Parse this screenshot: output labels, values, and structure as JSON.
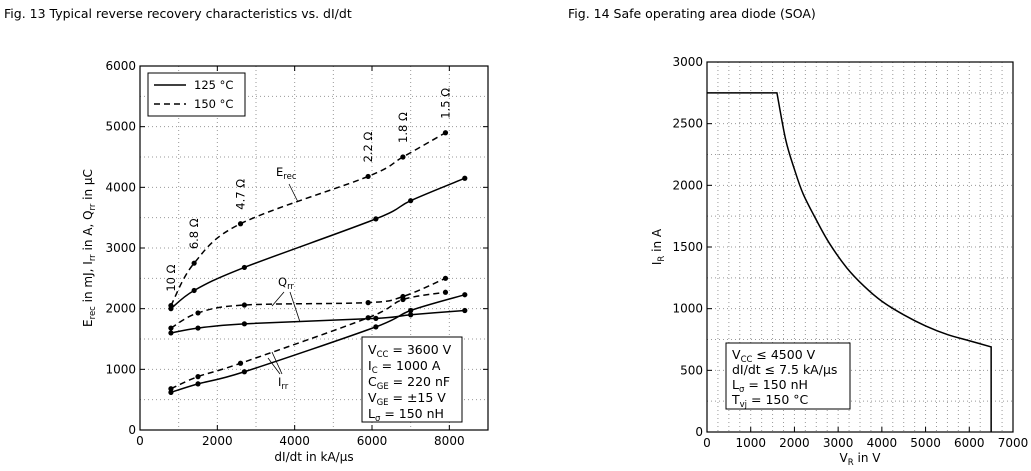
{
  "figures": {
    "fig13_title": "Fig. 13  Typical reverse recovery characteristics vs. dI/dt",
    "fig14_title": "Fig. 14  Safe operating area diode (SOA)"
  },
  "chart_data": [
    {
      "type": "line",
      "title": "Fig. 13  Typical reverse recovery characteristics vs. dI/dt",
      "xlabel": "dI/dt in kA/μs",
      "ylabel": "Erec in mJ, Irr in A, Qrr in μC",
      "xlim": [
        0,
        9000
      ],
      "ylim": [
        0,
        6000
      ],
      "xticks": [
        0,
        2000,
        4000,
        6000,
        8000
      ],
      "yticks": [
        0,
        1000,
        2000,
        3000,
        4000,
        5000,
        6000
      ],
      "grid": true,
      "legend": {
        "position": "top-left",
        "entries": [
          "125 °C",
          "150 °C"
        ]
      },
      "series": [
        {
          "name": "Erec 125 °C",
          "style": "solid",
          "x": [
            800,
            1400,
            2700,
            6100,
            7000,
            8400
          ],
          "y": [
            2000,
            2300,
            2680,
            3480,
            3780,
            4150
          ]
        },
        {
          "name": "Erec 150 °C",
          "style": "dashed",
          "x": [
            800,
            1400,
            2600,
            5900,
            6800,
            7900
          ],
          "y": [
            2050,
            2750,
            3400,
            4180,
            4500,
            4900
          ]
        },
        {
          "name": "Qrr 125 °C",
          "style": "solid",
          "x": [
            800,
            1500,
            2700,
            6100,
            7000,
            8400
          ],
          "y": [
            1600,
            1680,
            1750,
            1840,
            1900,
            1970
          ]
        },
        {
          "name": "Qrr 150 °C",
          "style": "dashed",
          "x": [
            800,
            1500,
            2700,
            5900,
            6800,
            7900
          ],
          "y": [
            1680,
            1930,
            2060,
            2100,
            2200,
            2500
          ]
        },
        {
          "name": "Irr 125 °C",
          "style": "solid",
          "x": [
            800,
            1500,
            2700,
            6100,
            7000,
            8400
          ],
          "y": [
            620,
            760,
            960,
            1700,
            1970,
            2230
          ]
        },
        {
          "name": "Irr 150 °C",
          "style": "dashed",
          "x": [
            800,
            1500,
            2600,
            5900,
            6800,
            7900
          ],
          "y": [
            680,
            880,
            1100,
            1850,
            2150,
            2270
          ]
        }
      ],
      "curve_labels": {
        "erec": "E",
        "erec_sub": "rec",
        "qrr": "Q",
        "qrr_sub": "rr",
        "irr": "I",
        "irr_sub": "rr"
      },
      "resistance_labels": [
        {
          "text": "10 Ω",
          "x": 800,
          "y": 2050
        },
        {
          "text": "6.8 Ω",
          "x": 1400,
          "y": 2750
        },
        {
          "text": "4.7 Ω",
          "x": 2600,
          "y": 3400
        },
        {
          "text": "2.2 Ω",
          "x": 5900,
          "y": 4180
        },
        {
          "text": "1.8 Ω",
          "x": 6800,
          "y": 4500
        },
        {
          "text": "1.5 Ω",
          "x": 7900,
          "y": 4900
        }
      ],
      "conditions": [
        "V",
        "CC",
        " = 3600 V",
        "I",
        "C",
        " = 1000 A",
        "C",
        "GE",
        " = 220 nF",
        "V",
        "GE",
        " = ±15 V",
        "L",
        "σ",
        " = 150 nH"
      ]
    },
    {
      "type": "line",
      "title": "Fig. 14  Safe operating area diode (SOA)",
      "xlabel": "VR in V",
      "ylabel": "IR in A",
      "xlim": [
        0,
        7000
      ],
      "ylim": [
        0,
        3000
      ],
      "xticks": [
        0,
        1000,
        2000,
        3000,
        4000,
        5000,
        6000,
        7000
      ],
      "yticks": [
        0,
        500,
        1000,
        1500,
        2000,
        2500,
        3000
      ],
      "grid": true,
      "series": [
        {
          "name": "SOA",
          "x": [
            0,
            1600,
            1800,
            2000,
            2200,
            2500,
            2800,
            3200,
            3600,
            4000,
            4500,
            5000,
            5500,
            6000,
            6500,
            6500
          ],
          "y": [
            2750,
            2750,
            2370,
            2130,
            1930,
            1720,
            1530,
            1330,
            1180,
            1060,
            950,
            860,
            790,
            740,
            690,
            0
          ]
        }
      ],
      "conditions": [
        "V",
        "CC",
        " ≤ 4500 V",
        "dI/dt ≤ 7.5 kA/μs",
        "",
        "",
        "L",
        "σ",
        " = 150 nH",
        "T",
        "vj",
        " = 150 °C"
      ]
    }
  ]
}
